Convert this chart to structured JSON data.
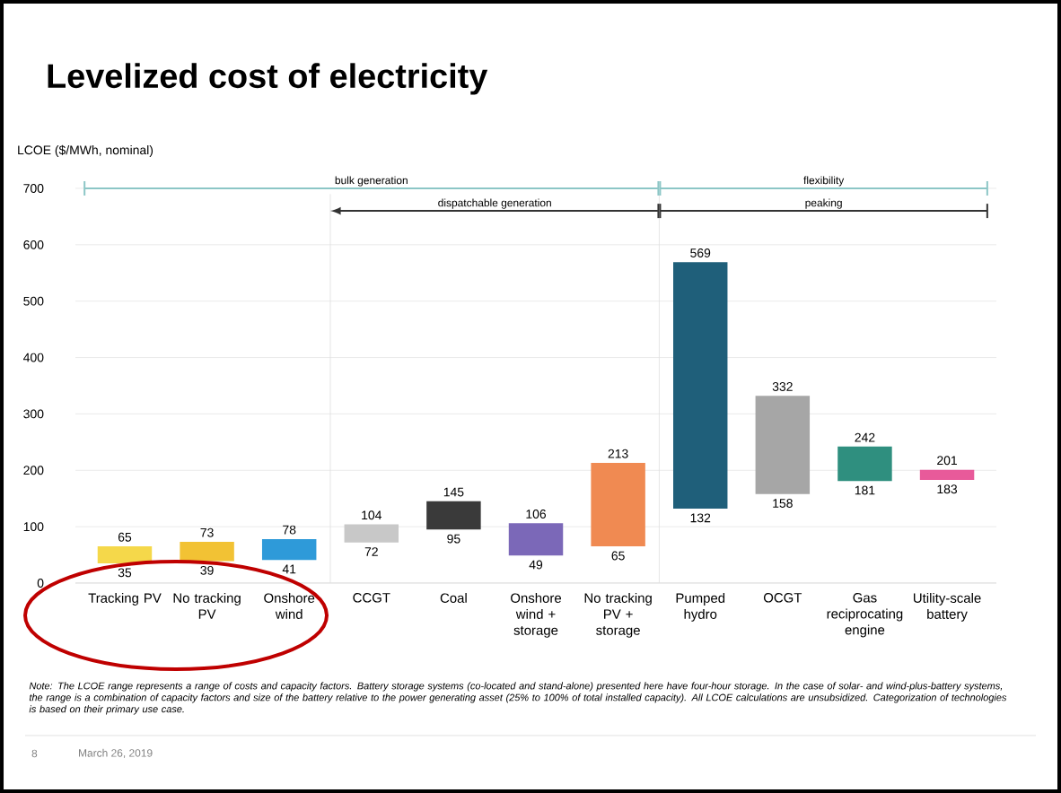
{
  "chart_data": {
    "type": "bar",
    "title": "Levelized cost of electricity",
    "ylabel": "LCOE ($/MWh, nominal)",
    "categories": [
      "Tracking PV",
      "No tracking PV",
      "Onshore wind",
      "CCGT",
      "Coal",
      "Onshore wind + storage",
      "No tracking PV + storage",
      "Pumped hydro",
      "OCGT",
      "Gas reciprocating engine",
      "Utility-scale battery"
    ],
    "base": [
      35,
      39,
      41,
      72,
      95,
      49,
      65,
      132,
      158,
      181,
      183
    ],
    "values": [
      30,
      34,
      37,
      32,
      50,
      57,
      148,
      437,
      174,
      61,
      18
    ],
    "colors": [
      "#f5d84a",
      "#f2c234",
      "#2e9ad9",
      "#c8c8c8",
      "#3a3a3a",
      "#7b68b8",
      "#f08a52",
      "#1f5f7a",
      "#a6a6a6",
      "#2f8f7f",
      "#e85a9a"
    ],
    "ylim": [
      0,
      700
    ],
    "yticks": [
      0,
      100,
      200,
      300,
      400,
      500,
      600,
      700
    ],
    "grid": "y",
    "annotations": [
      "bulk generation",
      "dispatchable generation",
      "flexibility",
      "peaking",
      {
        "text": "65",
        "x": "Tracking PV",
        "y": 65
      },
      {
        "text": "35",
        "x": "Tracking PV",
        "y": 35
      },
      {
        "text": "73",
        "x": "No tracking PV",
        "y": 73
      },
      {
        "text": "39",
        "x": "No tracking PV",
        "y": 39
      },
      {
        "text": "78",
        "x": "Onshore wind",
        "y": 78
      },
      {
        "text": "41",
        "x": "Onshore wind",
        "y": 41
      },
      {
        "text": "104",
        "x": "CCGT",
        "y": 104
      },
      {
        "text": "72",
        "x": "CCGT",
        "y": 72
      },
      {
        "text": "145",
        "x": "Coal",
        "y": 145
      },
      {
        "text": "95",
        "x": "Coal",
        "y": 95
      },
      {
        "text": "106",
        "x": "Onshore wind + storage",
        "y": 106
      },
      {
        "text": "49",
        "x": "Onshore wind + storage",
        "y": 49
      },
      {
        "text": "213",
        "x": "No tracking PV + storage",
        "y": 213
      },
      {
        "text": "65",
        "x": "No tracking PV + storage",
        "y": 65
      },
      {
        "text": "569",
        "x": "Pumped hydro",
        "y": 569
      },
      {
        "text": "132",
        "x": "Pumped hydro",
        "y": 132
      },
      {
        "text": "332",
        "x": "OCGT",
        "y": 332
      },
      {
        "text": "158",
        "x": "OCGT",
        "y": 158
      },
      {
        "text": "242",
        "x": "Gas reciprocating engine",
        "y": 242
      },
      {
        "text": "181",
        "x": "Gas reciprocating engine",
        "y": 181
      },
      {
        "text": "201",
        "x": "Utility-scale battery",
        "y": 201
      },
      {
        "text": "183",
        "x": "Utility-scale battery",
        "y": 183
      },
      "Note: The LCOE range represents a range of costs and capacity factors. Battery storage systems (co-located and stand-alone) presented here have four-hour storage. In the case of solar- and wind-plus-battery systems, the range is a combination of capacity factors and size of the battery relative to the power generating asset (25% to 100% of total installed capacity). All LCOE calculations are unsubsidized. Categorization of technologies is based on their primary use case.",
      "8",
      "March 26, 2019"
    ]
  }
}
